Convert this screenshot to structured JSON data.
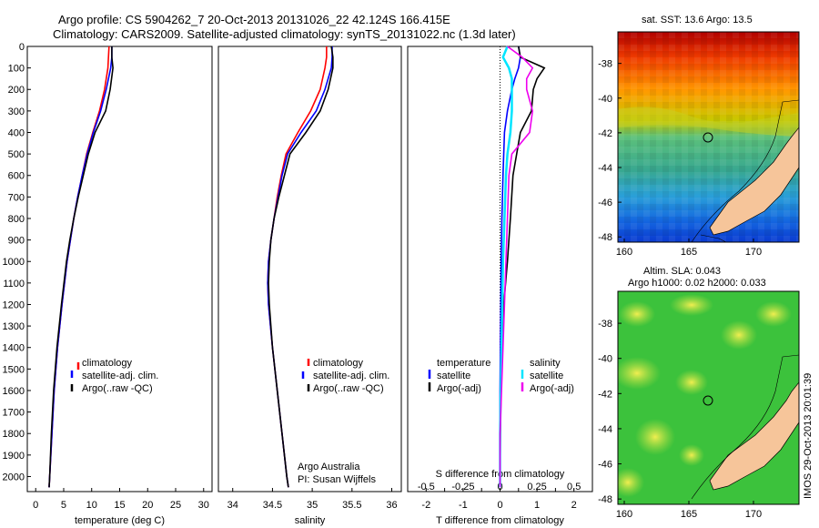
{
  "header": {
    "line1": "Argo profile: CS 5904262_7 20-Oct-2013 20131026_22 42.124S 166.415E",
    "line2": "Climatology: CARS2009. Satellite-adjusted climatology: synTS_20131022.nc (1.3d later)"
  },
  "colors": {
    "climatology": "#ff0000",
    "satellite": "#0000ff",
    "argo": "#000000",
    "cyan": "#00e5ff",
    "magenta": "#ee00ee",
    "land": "#f6c59a"
  },
  "legend_main": [
    "climatology",
    "satellite-adj. clim.",
    "Argo(..raw -QC)"
  ],
  "legend_diff": {
    "temperature_title": "temperature",
    "salinity_title": "salinity",
    "satellite": "satellite",
    "argo": "Argo(-adj)"
  },
  "credits": {
    "line1": "Argo Australia",
    "line2": "PI: Susan Wijffels"
  },
  "maps": {
    "sst_title": "sat. SST: 13.6 Argo: 13.5",
    "sla_title1": "Altim. SLA: 0.043",
    "sla_title2": "Argo h1000: 0.02 h2000: 0.033",
    "watermark": "IMOS 29-Oct-2013 20:01:39",
    "lat_ticks": [
      "-38",
      "-40",
      "-42",
      "-44",
      "-46",
      "-48"
    ],
    "lon_ticks": [
      "160",
      "165",
      "170"
    ]
  },
  "chart_data": [
    {
      "type": "line",
      "xlabel": "temperature (deg C)",
      "x_ticks": [
        "0",
        "5",
        "10",
        "15",
        "20",
        "25",
        "30"
      ],
      "xlim": [
        -1.5,
        31.5
      ],
      "ylim": [
        2070,
        0
      ],
      "y_ticks": [
        "0",
        "100",
        "200",
        "300",
        "400",
        "500",
        "600",
        "700",
        "800",
        "900",
        "1000",
        "1100",
        "1200",
        "1300",
        "1400",
        "1500",
        "1600",
        "1700",
        "1800",
        "1900",
        "2000"
      ],
      "depth": [
        0,
        50,
        100,
        200,
        300,
        400,
        500,
        600,
        700,
        800,
        900,
        1000,
        1200,
        1400,
        1600,
        1800,
        2000,
        2050
      ],
      "series": [
        {
          "name": "climatology",
          "values": [
            13.1,
            13.0,
            12.9,
            12.3,
            11.4,
            10.2,
            9.1,
            8.3,
            7.5,
            6.8,
            6.2,
            5.6,
            4.7,
            3.9,
            3.3,
            2.9,
            2.5,
            2.4
          ]
        },
        {
          "name": "satellite-adj. clim.",
          "values": [
            13.6,
            13.6,
            13.4,
            12.6,
            11.6,
            10.3,
            9.2,
            8.3,
            7.5,
            6.8,
            6.2,
            5.6,
            4.7,
            3.9,
            3.3,
            2.9,
            2.5,
            2.4
          ]
        },
        {
          "name": "Argo(..raw -QC)",
          "values": [
            13.6,
            13.6,
            13.8,
            13.3,
            12.5,
            10.6,
            9.4,
            8.5,
            7.6,
            6.8,
            6.1,
            5.5,
            4.6,
            3.8,
            3.2,
            2.8,
            2.5,
            2.4
          ]
        }
      ]
    },
    {
      "type": "line",
      "xlabel": "salinity",
      "x_ticks": [
        "34",
        "34.5",
        "35",
        "35.5",
        "36"
      ],
      "xlim": [
        33.82,
        36.12
      ],
      "ylim": [
        2070,
        0
      ],
      "depth": [
        0,
        50,
        100,
        200,
        300,
        400,
        500,
        600,
        700,
        800,
        900,
        1000,
        1100,
        1200,
        1400,
        1600,
        1800,
        2000,
        2050
      ],
      "series": [
        {
          "name": "climatology",
          "values": [
            35.18,
            35.18,
            35.16,
            35.1,
            34.98,
            34.82,
            34.67,
            34.61,
            34.56,
            34.52,
            34.48,
            34.45,
            34.44,
            34.45,
            34.5,
            34.56,
            34.62,
            34.68,
            34.7
          ]
        },
        {
          "name": "satellite-adj. clim.",
          "values": [
            35.25,
            35.25,
            35.24,
            35.16,
            35.05,
            34.86,
            34.69,
            34.62,
            34.57,
            34.52,
            34.48,
            34.45,
            34.44,
            34.45,
            34.5,
            34.56,
            34.62,
            34.68,
            34.7
          ]
        },
        {
          "name": "Argo(..raw -QC)",
          "values": [
            35.24,
            35.26,
            35.26,
            35.2,
            35.1,
            34.92,
            34.72,
            34.65,
            34.58,
            34.52,
            34.48,
            34.46,
            34.45,
            34.46,
            34.5,
            34.56,
            34.62,
            34.68,
            34.7
          ]
        }
      ]
    },
    {
      "type": "line",
      "xlabel": "T difference from climatology",
      "xlabel_top": "S difference from climatology",
      "x_ticks": [
        "-2",
        "-1.5",
        "-1",
        "-0.5",
        "0",
        "0.5",
        "1",
        "1.5",
        "2"
      ],
      "x_ticks_top": [
        "-0.5",
        "-0.25",
        "0",
        "0.25",
        "0.5"
      ],
      "xlim": [
        -2.5,
        2.5
      ],
      "ylim": [
        2070,
        0
      ],
      "depth": [
        0,
        50,
        100,
        150,
        200,
        300,
        400,
        500,
        600,
        800,
        1000,
        1200,
        1400,
        1600,
        1800,
        2000,
        2050
      ],
      "series": [
        {
          "name": "temperature satellite",
          "values": [
            0.5,
            0.55,
            0.5,
            0.4,
            0.32,
            0.2,
            0.12,
            0.1,
            0.08,
            0.05,
            0.03,
            0.02,
            0.01,
            0.0,
            0.0,
            0.0,
            0.0
          ]
        },
        {
          "name": "temperature Argo(-adj)",
          "values": [
            0.5,
            0.55,
            1.2,
            1.0,
            0.9,
            0.85,
            0.55,
            0.45,
            0.35,
            0.28,
            0.2,
            0.1,
            0.05,
            0.02,
            0.01,
            0.0,
            0.0
          ]
        },
        {
          "name": "salinity satellite",
          "values": [
            0.05,
            0.02,
            0.06,
            0.08,
            0.08,
            0.08,
            0.07,
            0.05,
            0.04,
            0.03,
            0.02,
            0.015,
            0.01,
            0.005,
            0.0,
            0.0,
            0.0
          ]
        },
        {
          "name": "salinity Argo(-adj)",
          "values": [
            0.05,
            0.15,
            0.22,
            0.18,
            0.18,
            0.22,
            0.2,
            0.08,
            0.06,
            0.05,
            0.04,
            0.03,
            0.02,
            0.01,
            0.0,
            0.0,
            0.0
          ]
        }
      ]
    }
  ]
}
